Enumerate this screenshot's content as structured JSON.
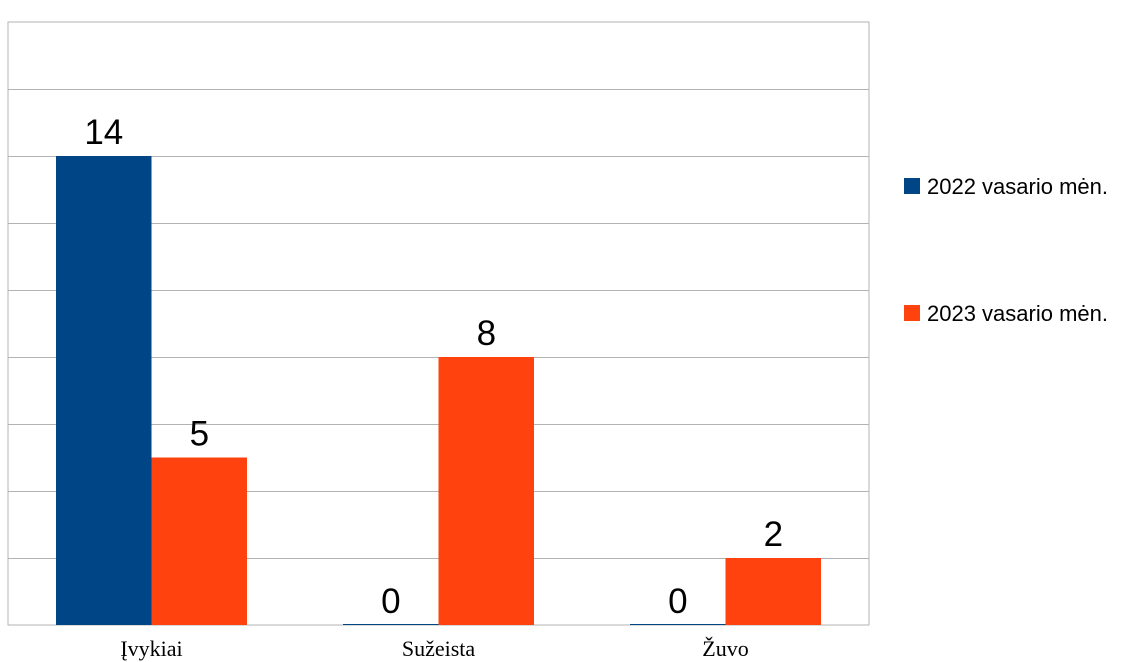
{
  "chart_data": {
    "type": "bar",
    "categories": [
      "Įvykiai",
      "Sužeista",
      "Žuvo"
    ],
    "series": [
      {
        "name": "2022 vasario mėn.",
        "values": [
          14,
          0,
          0
        ],
        "color": "#004586"
      },
      {
        "name": "2023 vasario mėn.",
        "values": [
          5,
          8,
          2
        ],
        "color": "#ff420e"
      }
    ],
    "ylim": [
      0,
      18
    ],
    "y_gridline_step": 2,
    "grid": true,
    "show_y_tick_labels": false,
    "data_labels": true,
    "legend_position": "right"
  }
}
